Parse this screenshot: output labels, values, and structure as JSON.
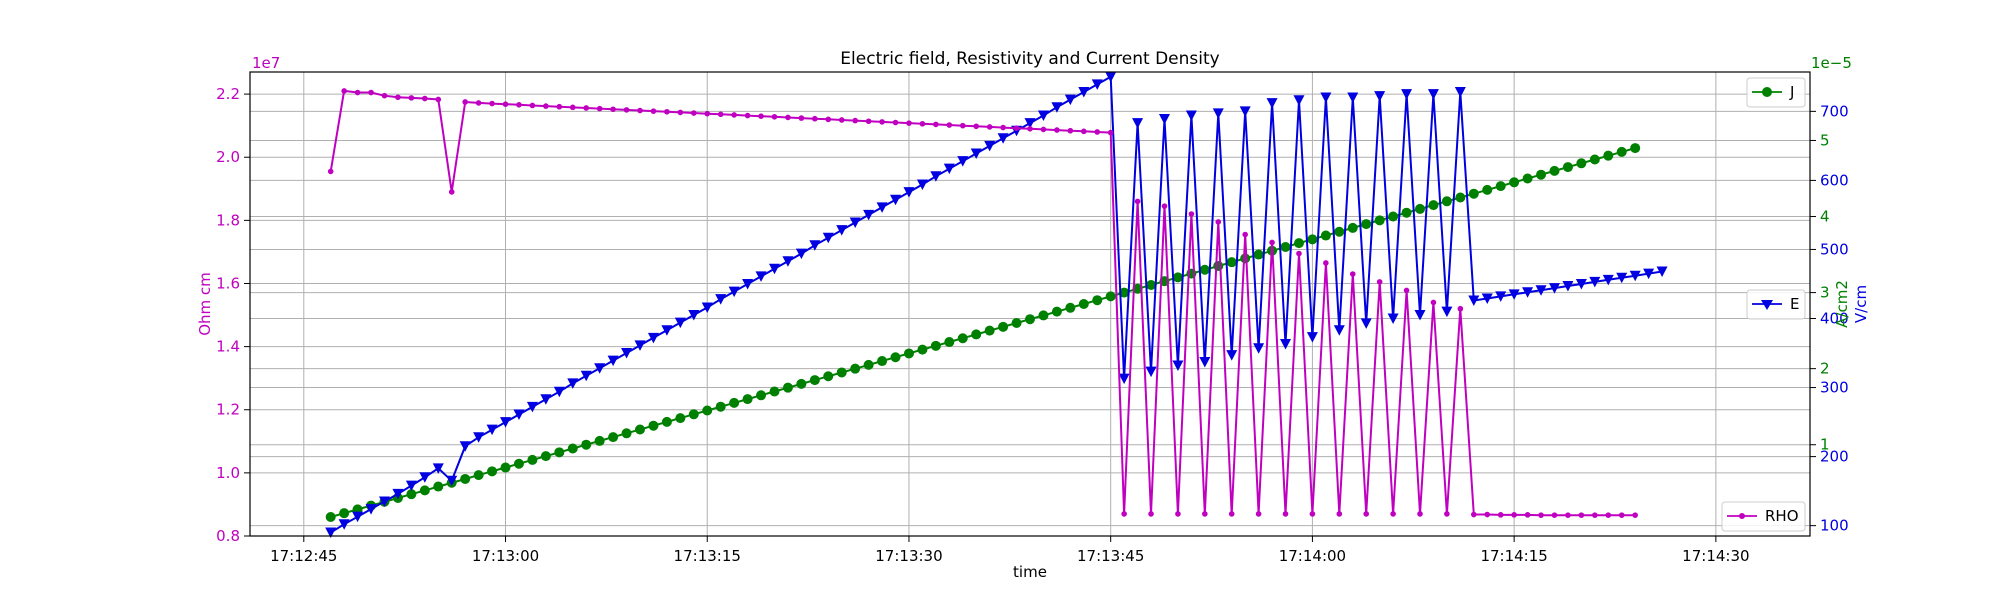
{
  "chart_data": {
    "type": "line",
    "title": "Electric field, Resistivity and Current Density",
    "xlabel": "time",
    "x_ticks": [
      "17:12:45",
      "17:13:00",
      "17:13:15",
      "17:13:30",
      "17:13:45",
      "17:14:00",
      "17:14:15",
      "17:14:30"
    ],
    "xlim": [
      "17:12:41",
      "17:14:37"
    ],
    "grid": true,
    "axes": {
      "left": {
        "label": "Ohm cm",
        "color": "#c000c0",
        "offset_text": "1e7",
        "tick_labels": [
          "0.8",
          "1.0",
          "1.2",
          "1.4",
          "1.6",
          "1.8",
          "2.0",
          "2.2"
        ],
        "tick_values": [
          0.8,
          1.0,
          1.2,
          1.4,
          1.6,
          1.8,
          2.0,
          2.2
        ],
        "ylim": [
          0.8,
          2.27
        ]
      },
      "right_inner": {
        "label": "V/cm",
        "color": "#0000e0",
        "tick_labels": [
          "100",
          "200",
          "300",
          "400",
          "500",
          "600",
          "700"
        ],
        "tick_values": [
          100,
          200,
          300,
          400,
          500,
          600,
          700
        ],
        "ylim": [
          85,
          757
        ]
      },
      "right_outer": {
        "label": "A/cm2",
        "color": "#008000",
        "offset_text": "1e−5",
        "tick_labels": [
          "1",
          "2",
          "3",
          "4",
          "5"
        ],
        "tick_values": [
          1,
          2,
          3,
          4,
          5
        ],
        "ylim": [
          -0.2,
          5.9
        ]
      }
    },
    "legends": [
      {
        "label": "J",
        "series": "J",
        "placement": "upper-right"
      },
      {
        "label": "E",
        "series": "E",
        "placement": "center-right"
      },
      {
        "label": "RHO",
        "series": "RHO",
        "placement": "lower-right"
      }
    ],
    "series": [
      {
        "name": "RHO",
        "axis": "left",
        "color": "#c000c0",
        "marker": "dot",
        "t_start": "17:12:47",
        "values": [
          1.955,
          2.21,
          2.205,
          2.205,
          2.195,
          2.19,
          2.188,
          2.186,
          2.183,
          1.89,
          2.175,
          2.172,
          2.17,
          2.168,
          2.166,
          2.164,
          2.162,
          2.16,
          2.158,
          2.156,
          2.154,
          2.152,
          2.15,
          2.148,
          2.146,
          2.144,
          2.142,
          2.14,
          2.138,
          2.136,
          2.134,
          2.132,
          2.13,
          2.128,
          2.126,
          2.124,
          2.122,
          2.12,
          2.118,
          2.116,
          2.114,
          2.112,
          2.11,
          2.108,
          2.106,
          2.104,
          2.102,
          2.1,
          2.098,
          2.096,
          2.094,
          2.092,
          2.09,
          2.088,
          2.086,
          2.084,
          2.082,
          2.08,
          2.078,
          0.87,
          1.86,
          0.87,
          1.845,
          0.87,
          1.82,
          0.87,
          1.795,
          0.87,
          1.755,
          0.87,
          1.73,
          0.87,
          1.695,
          0.87,
          1.665,
          0.87,
          1.63,
          0.87,
          1.605,
          0.87,
          1.578,
          0.87,
          1.54,
          0.87,
          1.52,
          0.868,
          0.868,
          0.867,
          0.867,
          0.867,
          0.866,
          0.866,
          0.866,
          0.866,
          0.866,
          0.866,
          0.866,
          0.866
        ]
      },
      {
        "name": "E",
        "axis": "right_inner",
        "color": "#0000e0",
        "marker": "triangle-down",
        "t_start": "17:12:47",
        "values": [
          90,
          102,
          113,
          124,
          135,
          146,
          158,
          170,
          183,
          165,
          215,
          228,
          239,
          250,
          261,
          272,
          283,
          294,
          306,
          317,
          328,
          339,
          350,
          361,
          372,
          383,
          394,
          405,
          416,
          428,
          439,
          450,
          461,
          472,
          483,
          494,
          506,
          517,
          528,
          539,
          550,
          561,
          572,
          583,
          594,
          606,
          617,
          628,
          639,
          650,
          661,
          672,
          683,
          694,
          706,
          717,
          728,
          739,
          750,
          313,
          683,
          323,
          689,
          332,
          694,
          337,
          697,
          347,
          700,
          357,
          712,
          363,
          716,
          373,
          720,
          383,
          720,
          393,
          722,
          400,
          725,
          405,
          725,
          410,
          728,
          426,
          429,
          432,
          435,
          438,
          441,
          444,
          447,
          450,
          453,
          456,
          459,
          462,
          465,
          468
        ]
      },
      {
        "name": "J",
        "axis": "right_outer",
        "color": "#008000",
        "marker": "circle",
        "t_start": "17:12:47",
        "values": [
          0.05,
          0.1,
          0.15,
          0.2,
          0.25,
          0.3,
          0.35,
          0.4,
          0.45,
          0.5,
          0.55,
          0.6,
          0.65,
          0.7,
          0.75,
          0.8,
          0.85,
          0.9,
          0.95,
          1.0,
          1.05,
          1.1,
          1.15,
          1.2,
          1.25,
          1.3,
          1.35,
          1.4,
          1.45,
          1.5,
          1.55,
          1.6,
          1.65,
          1.7,
          1.75,
          1.8,
          1.85,
          1.9,
          1.95,
          2.0,
          2.05,
          2.1,
          2.15,
          2.2,
          2.25,
          2.3,
          2.35,
          2.4,
          2.45,
          2.5,
          2.55,
          2.6,
          2.65,
          2.7,
          2.75,
          2.8,
          2.85,
          2.9,
          2.95,
          3.0,
          3.05,
          3.1,
          3.15,
          3.2,
          3.25,
          3.3,
          3.35,
          3.4,
          3.45,
          3.5,
          3.55,
          3.6,
          3.65,
          3.7,
          3.75,
          3.8,
          3.85,
          3.9,
          3.95,
          4.0,
          4.05,
          4.1,
          4.15,
          4.2,
          4.25,
          4.3,
          4.35,
          4.4,
          4.45,
          4.5,
          4.55,
          4.6,
          4.65,
          4.7,
          4.75,
          4.8,
          4.85,
          4.9
        ]
      }
    ]
  }
}
